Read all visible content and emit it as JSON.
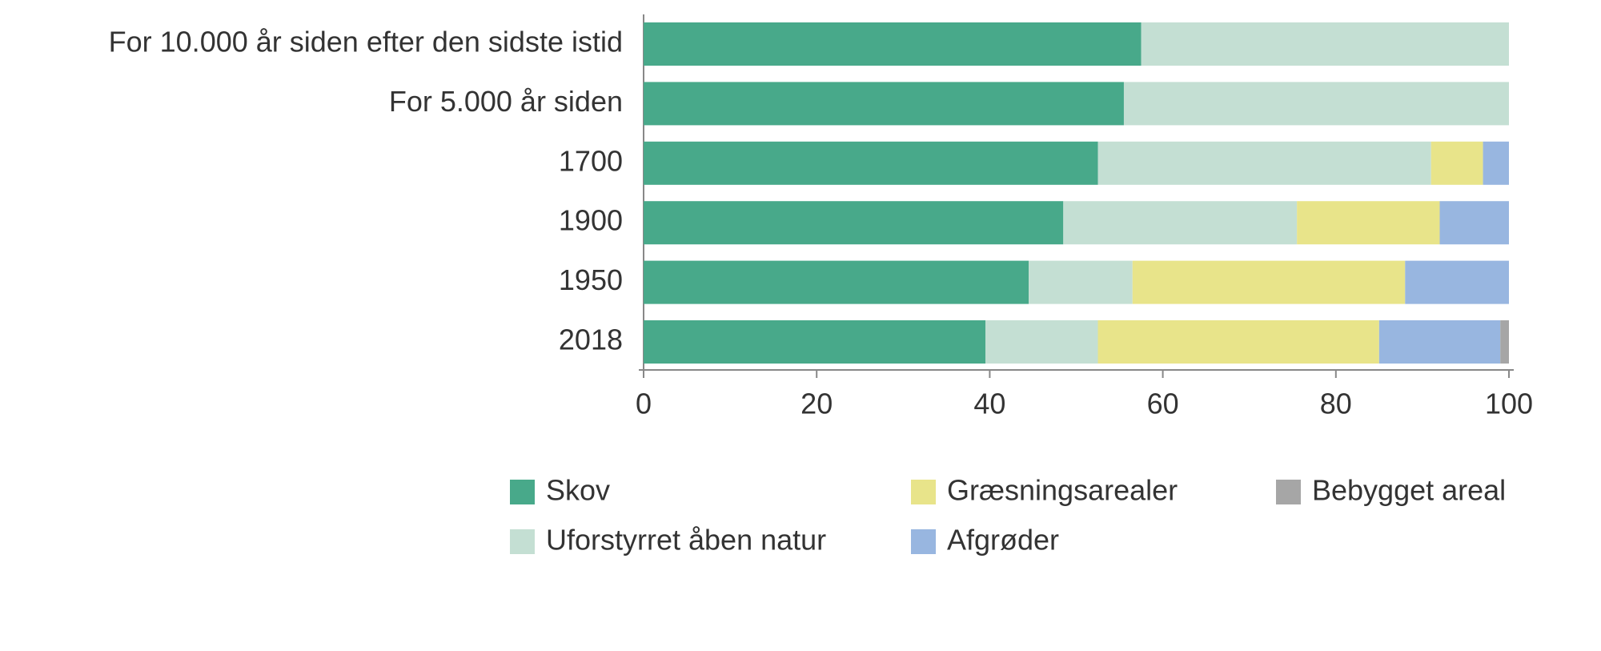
{
  "chart_data": {
    "type": "stacked-bar-horizontal",
    "categories": [
      "For 10.000 år siden efter den sidste istid",
      "For 5.000 år siden",
      "1700",
      "1900",
      "1950",
      "2018"
    ],
    "series": [
      {
        "name": "Skov",
        "color": "#48a98a",
        "values": [
          57.5,
          55.5,
          52.5,
          48.5,
          44.5,
          39.5
        ]
      },
      {
        "name": "Uforstyrret åben natur",
        "color": "#c4dfd3",
        "values": [
          42.5,
          44.5,
          38.5,
          27,
          12,
          13
        ]
      },
      {
        "name": "Græsningsarealer",
        "color": "#e8e48a",
        "values": [
          0,
          0,
          6,
          16.5,
          31.5,
          32.5
        ]
      },
      {
        "name": "Afgrøder",
        "color": "#98b6e0",
        "values": [
          0,
          0,
          3,
          8,
          12,
          14
        ]
      },
      {
        "name": "Bebygget areal",
        "color": "#a6a6a6",
        "values": [
          0,
          0,
          0,
          0,
          0,
          1
        ]
      }
    ],
    "xlim": [
      0,
      100
    ],
    "xticks": [
      0,
      20,
      40,
      60,
      80,
      100
    ]
  }
}
